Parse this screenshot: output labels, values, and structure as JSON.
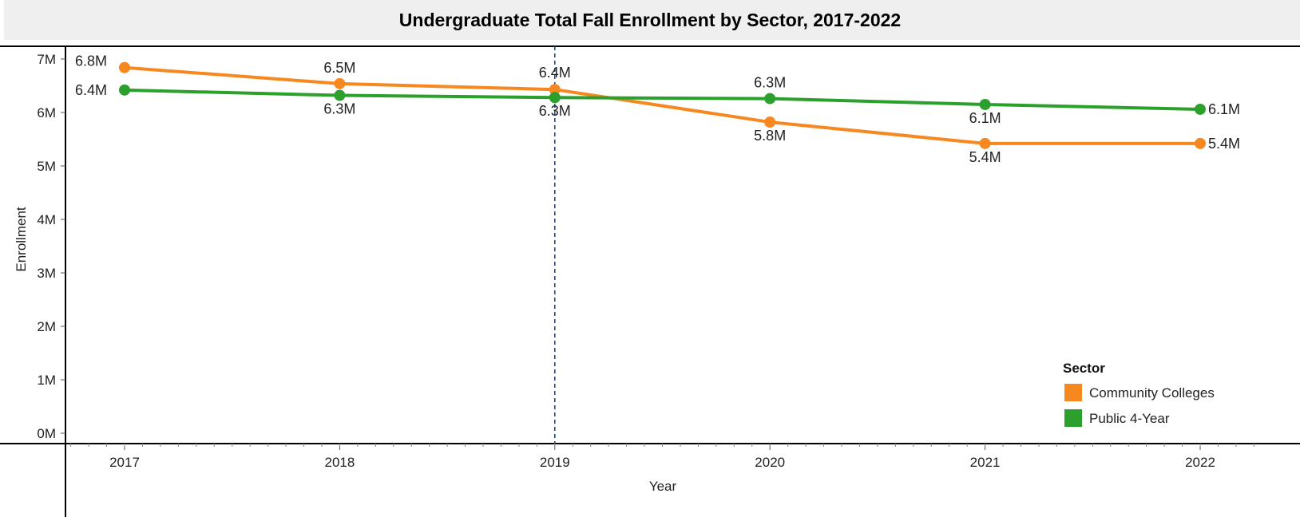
{
  "chart_data": {
    "type": "line",
    "title": "Undergraduate Total Fall Enrollment by Sector, 2017-2022",
    "xlabel": "Year",
    "ylabel": "Enrollment",
    "x": [
      2017,
      2018,
      2019,
      2020,
      2021,
      2022
    ],
    "x_tick_labels": [
      "2017",
      "2018",
      "2019",
      "2020",
      "2021",
      "2022"
    ],
    "ylim": [
      0,
      7000000
    ],
    "y_ticks": [
      0,
      1000000,
      2000000,
      3000000,
      4000000,
      5000000,
      6000000,
      7000000
    ],
    "y_tick_labels": [
      "0M",
      "1M",
      "2M",
      "3M",
      "4M",
      "5M",
      "6M",
      "7M"
    ],
    "reference_line_x": 2019,
    "grid": false,
    "legend_title": "Sector",
    "legend_position": "bottom-right",
    "series": [
      {
        "name": "Community Colleges",
        "color": "#f7881f",
        "values": [
          6840000,
          6540000,
          6430000,
          5820000,
          5420000,
          5420000
        ],
        "labels": [
          "6.8M",
          "6.5M",
          "6.4M",
          "5.8M",
          "5.4M",
          "5.4M"
        ]
      },
      {
        "name": "Public 4-Year",
        "color": "#2ca02c",
        "values": [
          6420000,
          6320000,
          6280000,
          6260000,
          6150000,
          6060000
        ],
        "labels": [
          "6.4M",
          "6.3M",
          "6.3M",
          "6.3M",
          "6.1M",
          "6.1M"
        ]
      }
    ]
  }
}
